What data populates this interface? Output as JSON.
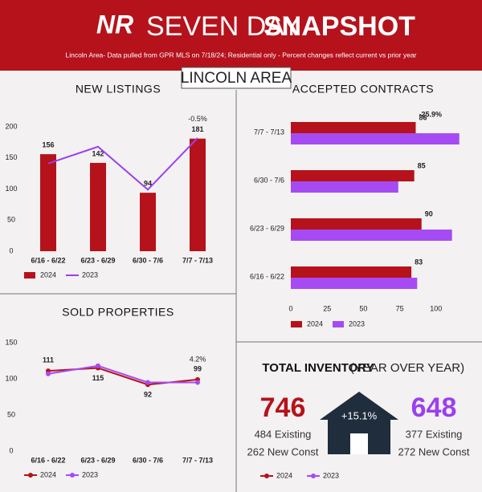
{
  "header": {
    "logo": "NR",
    "title_light": "SEVEN DAY",
    "title_bold": "SNAPSHOT",
    "subtitle": "Lincoln Area- Data pulled from GPR MLS on 7/18/24; Residential only - Percent changes reflect current vs prior year",
    "area": "LINCOLN AREA"
  },
  "chart_data": [
    {
      "type": "bar",
      "title": "NEW LISTINGS",
      "categories": [
        "6/16 - 6/22",
        "6/23 - 6/29",
        "6/30 - 7/6",
        "7/7 - 7/13"
      ],
      "series": [
        {
          "name": "2024",
          "color": "#b5121b",
          "type": "bar",
          "values": [
            156,
            142,
            94,
            181
          ]
        },
        {
          "name": "2023",
          "color": "#9b3ff0",
          "type": "line",
          "values": [
            141,
            168,
            99,
            182
          ]
        }
      ],
      "ylim": [
        0,
        200
      ],
      "yticks": [
        0,
        50,
        100,
        150,
        200
      ],
      "annotation": "-0.5%"
    },
    {
      "type": "barh",
      "title": "ACCEPTED CONTRACTS",
      "categories": [
        "7/7 - 7/13",
        "6/30 - 7/6",
        "6/23 - 6/29",
        "6/16 - 6/22"
      ],
      "series": [
        {
          "name": "2024",
          "color": "#b5121b",
          "values": [
            86,
            85,
            90,
            83
          ]
        },
        {
          "name": "2023",
          "color": "#a64bf4",
          "values": [
            116,
            74,
            111,
            87
          ]
        }
      ],
      "xlim": [
        0,
        125
      ],
      "xticks": [
        0,
        25,
        50,
        75,
        100
      ],
      "annotation": "-25.9%"
    },
    {
      "type": "line",
      "title": "SOLD PROPERTIES",
      "categories": [
        "6/16 - 6/22",
        "6/23 - 6/29",
        "6/30 - 7/6",
        "7/7 - 7/13"
      ],
      "series": [
        {
          "name": "2024",
          "color": "#b5121b",
          "values": [
            111,
            115,
            92,
            99
          ]
        },
        {
          "name": "2023",
          "color": "#a64bf4",
          "values": [
            107,
            118,
            95,
            95
          ]
        }
      ],
      "ylim": [
        0,
        150
      ],
      "yticks": [
        0,
        50,
        100,
        150
      ],
      "annotation": "4.2%"
    }
  ],
  "inventory": {
    "title_bold": "TOTAL INVENTORY",
    "title_light": "(YEAR OVER YEAR)",
    "change": "+15.1%",
    "current": {
      "total": 746,
      "existing": "484 Existing",
      "new": "262 New Const"
    },
    "prior": {
      "total": 648,
      "existing": "377 Existing",
      "new": "272 New Const"
    },
    "legend": [
      "2024",
      "2023"
    ]
  }
}
